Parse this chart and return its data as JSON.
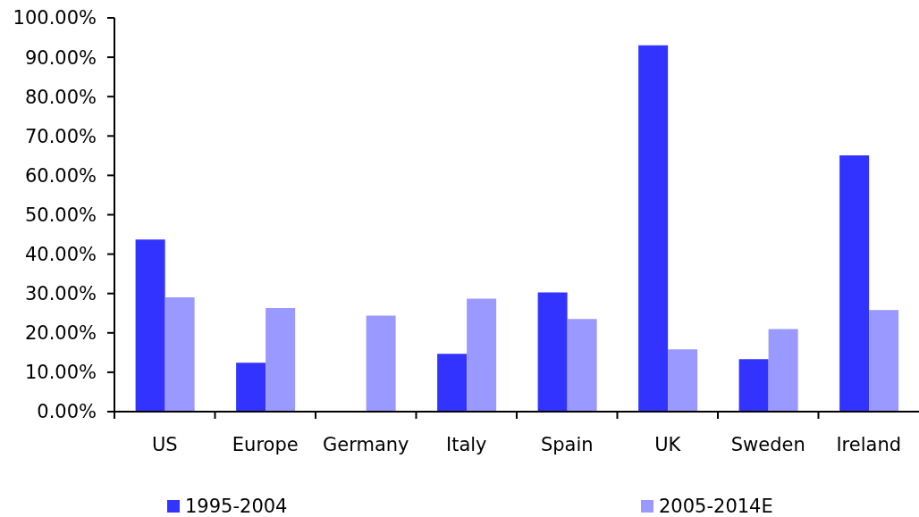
{
  "chart_data": {
    "type": "bar",
    "categories": [
      "US",
      "Europe",
      "Germany",
      "Italy",
      "Spain",
      "UK",
      "Sweden",
      "Ireland"
    ],
    "series": [
      {
        "name": "1995-2004",
        "color": "#3333ff",
        "values": [
          43.7,
          12.4,
          null,
          14.7,
          30.3,
          93.0,
          13.3,
          65.1
        ]
      },
      {
        "name": "2005-2014E",
        "color": "#9999ff",
        "values": [
          29.0,
          26.3,
          24.4,
          28.7,
          23.5,
          15.8,
          21.0,
          25.8
        ]
      }
    ],
    "ylim": [
      0,
      100
    ],
    "yticks": [
      {
        "value": 0,
        "label": "0.00%"
      },
      {
        "value": 10,
        "label": "10.00%"
      },
      {
        "value": 20,
        "label": "20.00%"
      },
      {
        "value": 30,
        "label": "30.00%"
      },
      {
        "value": 40,
        "label": "40.00%"
      },
      {
        "value": 50,
        "label": "50.00%"
      },
      {
        "value": 60,
        "label": "60.00%"
      },
      {
        "value": 70,
        "label": "70.00%"
      },
      {
        "value": 80,
        "label": "80.00%"
      },
      {
        "value": 90,
        "label": "90.00%"
      },
      {
        "value": 100,
        "label": "100.00%"
      }
    ],
    "legend": "bottom"
  }
}
